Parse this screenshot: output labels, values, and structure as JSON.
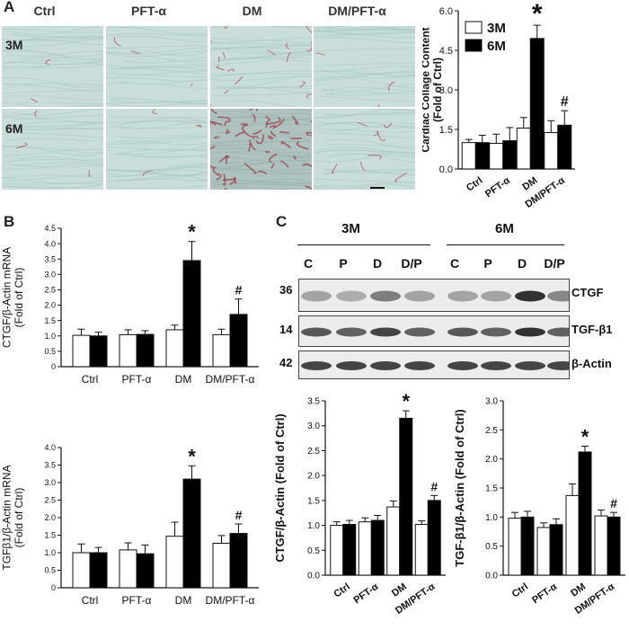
{
  "panels": {
    "A": "A",
    "B": "B",
    "C": "C"
  },
  "panel_a": {
    "columns": [
      "Ctrl",
      "PFT-α",
      "DM",
      "DM/PFT-α"
    ],
    "rows": [
      "3M",
      "6M"
    ]
  },
  "panel_c_blot": {
    "timepoints": [
      "3M",
      "6M"
    ],
    "lanes": [
      "C",
      "P",
      "D",
      "D/P",
      "C",
      "P",
      "D",
      "D/P"
    ],
    "markers": [
      "36",
      "14",
      "42"
    ],
    "proteins": [
      "CTGF",
      "TGF-β1",
      "β-Actin"
    ]
  },
  "colors": {
    "bar_3m": "#ffffff",
    "bar_6m": "#000000",
    "tissue": "#c9dedb",
    "collagen": "#b23a4a"
  },
  "chart_data": [
    {
      "id": "a_collagen",
      "type": "bar",
      "ylabel": "Cardiac Collage Content\n(Fold of Ctrl)",
      "categories": [
        "Ctrl",
        "PFT-α",
        "DM",
        "DM/PFT-α"
      ],
      "ylim": [
        0,
        6.0
      ],
      "ticks": [
        0.0,
        1.5,
        3.0,
        4.5,
        6.0
      ],
      "tick_labels": [
        "0.0",
        "1.5",
        "3.0",
        "4.5",
        "6.0"
      ],
      "series": [
        {
          "name": "3M",
          "values": [
            1.0,
            0.97,
            1.55,
            1.38
          ],
          "errors": [
            0.12,
            0.35,
            0.4,
            0.45
          ]
        },
        {
          "name": "6M",
          "values": [
            1.0,
            1.07,
            4.95,
            1.66
          ],
          "errors": [
            0.28,
            0.5,
            0.5,
            0.55
          ]
        }
      ],
      "annotations": [
        {
          "symbol": "*",
          "category": 2,
          "series": 1
        },
        {
          "symbol": "#",
          "category": 3,
          "series": 1
        }
      ],
      "legend": "top-left"
    },
    {
      "id": "b_ctgf",
      "type": "bar",
      "ylabel": "CTGF/β-Actin mRNA\n(Fold of Ctrl)",
      "categories": [
        "Ctrl",
        "PFT-α",
        "DM",
        "DM/PFT-α"
      ],
      "ylim": [
        0,
        4.5
      ],
      "ticks": [
        0,
        0.5,
        1.0,
        1.5,
        2.0,
        2.5,
        3.0,
        3.5,
        4.0,
        4.5
      ],
      "tick_labels": [
        "0",
        "0.5",
        "1.0",
        "1.5",
        "2.0",
        "2.5",
        "3.0",
        "3.5",
        "4.0",
        "4.5"
      ],
      "series": [
        {
          "name": "3M",
          "values": [
            1.02,
            1.04,
            1.2,
            1.04
          ],
          "errors": [
            0.2,
            0.16,
            0.15,
            0.18
          ]
        },
        {
          "name": "6M",
          "values": [
            1.0,
            1.05,
            3.45,
            1.7
          ],
          "errors": [
            0.12,
            0.12,
            0.62,
            0.5
          ]
        }
      ],
      "annotations": [
        {
          "symbol": "*",
          "category": 2,
          "series": 1
        },
        {
          "symbol": "#",
          "category": 3,
          "series": 1
        }
      ]
    },
    {
      "id": "b_tgf",
      "type": "bar",
      "ylabel": "TGFβ1/β-Actin mRNA\n(Fold of Ctrl)",
      "categories": [
        "Ctrl",
        "PFT-α",
        "DM",
        "DM/PFT-α"
      ],
      "ylim": [
        0,
        4.0
      ],
      "ticks": [
        0,
        0.5,
        1.0,
        1.5,
        2.0,
        2.5,
        3.0,
        3.5,
        4.0
      ],
      "tick_labels": [
        "0",
        "0.5",
        "1.0",
        "1.5",
        "2.0",
        "2.5",
        "3.0",
        "3.5",
        "4.0"
      ],
      "series": [
        {
          "name": "3M",
          "values": [
            1.0,
            1.08,
            1.47,
            1.27
          ],
          "errors": [
            0.25,
            0.2,
            0.4,
            0.22
          ]
        },
        {
          "name": "6M",
          "values": [
            1.0,
            0.97,
            3.1,
            1.55
          ],
          "errors": [
            0.15,
            0.25,
            0.38,
            0.27
          ]
        }
      ],
      "annotations": [
        {
          "symbol": "*",
          "category": 2,
          "series": 1
        },
        {
          "symbol": "#",
          "category": 3,
          "series": 1
        }
      ]
    },
    {
      "id": "c_ctgf",
      "type": "bar",
      "ylabel": "CTGF/β-Actin (Fold of Ctrl)",
      "categories": [
        "Ctrl",
        "PFT-α",
        "DM",
        "DM/PFT-α"
      ],
      "ylim": [
        0,
        3.5
      ],
      "ticks": [
        0.0,
        0.5,
        1.0,
        1.5,
        2.0,
        2.5,
        3.0,
        3.5
      ],
      "tick_labels": [
        "0.0",
        "0.5",
        "1.0",
        "1.5",
        "2.0",
        "2.5",
        "3.0",
        "3.5"
      ],
      "series": [
        {
          "name": "3M",
          "values": [
            1.0,
            1.07,
            1.37,
            1.02
          ],
          "errors": [
            0.07,
            0.08,
            0.12,
            0.07
          ]
        },
        {
          "name": "6M",
          "values": [
            1.02,
            1.1,
            3.15,
            1.5
          ],
          "errors": [
            0.08,
            0.1,
            0.15,
            0.1
          ]
        }
      ],
      "annotations": [
        {
          "symbol": "*",
          "category": 2,
          "series": 1
        },
        {
          "symbol": "#",
          "category": 3,
          "series": 1
        }
      ]
    },
    {
      "id": "c_tgf",
      "type": "bar",
      "ylabel": "TGF-β1/β-Actin (Fold of Ctrl)",
      "categories": [
        "Ctrl",
        "PFT-α",
        "DM",
        "DM/PFT-α"
      ],
      "ylim": [
        0,
        3.0
      ],
      "ticks": [
        0.0,
        0.5,
        1.0,
        1.5,
        2.0,
        2.5,
        3.0
      ],
      "tick_labels": [
        "0.0",
        "0.5",
        "1.0",
        "1.5",
        "2.0",
        "2.5",
        "3.0"
      ],
      "series": [
        {
          "name": "3M",
          "values": [
            0.98,
            0.82,
            1.37,
            1.02
          ],
          "errors": [
            0.1,
            0.08,
            0.2,
            0.1
          ]
        },
        {
          "name": "6M",
          "values": [
            1.0,
            0.87,
            2.12,
            1.0
          ],
          "errors": [
            0.1,
            0.1,
            0.1,
            0.08
          ]
        }
      ],
      "annotations": [
        {
          "symbol": "*",
          "category": 2,
          "series": 1
        },
        {
          "symbol": "#",
          "category": 3,
          "series": 1
        }
      ]
    }
  ]
}
